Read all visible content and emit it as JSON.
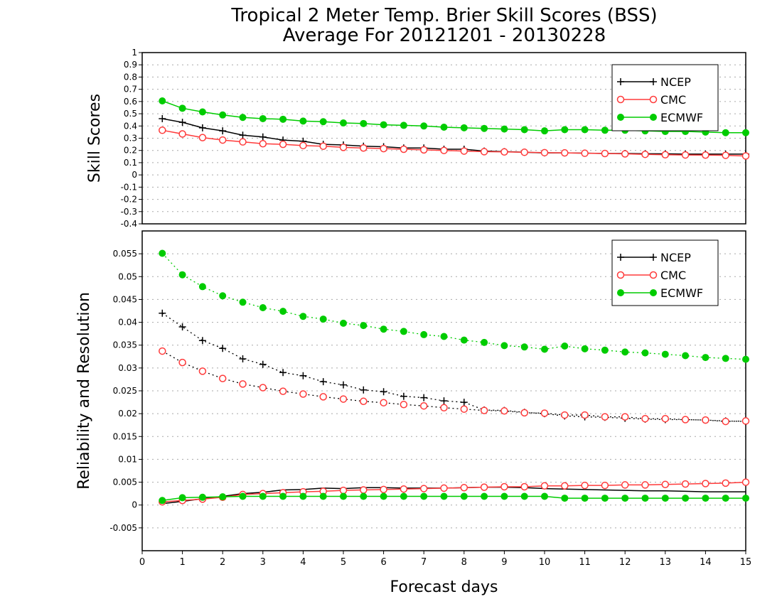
{
  "title_line1": "Tropical 2 Meter Temp. Brier Skill Scores (BSS)",
  "title_line2": "Average For 20121201 - 20130228",
  "chart_data": [
    {
      "type": "line",
      "ylabel": "Skill Scores",
      "xlabel": "",
      "xlim": [
        0,
        15
      ],
      "ylim": [
        -0.4,
        1.0
      ],
      "yticks": [
        "-0.4",
        "-0.3",
        "-0.2",
        "-0.1",
        "0",
        "0.1",
        "0.2",
        "0.3",
        "0.4",
        "0.5",
        "0.6",
        "0.7",
        "0.8",
        "0.9",
        "1"
      ],
      "grid": true,
      "legend_position": "top-right",
      "x": [
        0.5,
        1,
        1.5,
        2,
        2.5,
        3,
        3.5,
        4,
        4.5,
        5,
        5.5,
        6,
        6.5,
        7,
        7.5,
        8,
        8.5,
        9,
        9.5,
        10,
        10.5,
        11,
        11.5,
        12,
        12.5,
        13,
        13.5,
        14,
        14.5,
        15
      ],
      "series": [
        {
          "name": "NCEP",
          "color": "#000000",
          "marker": "plus",
          "line": "solid",
          "values": [
            0.46,
            0.43,
            0.385,
            0.36,
            0.325,
            0.31,
            0.285,
            0.275,
            0.25,
            0.245,
            0.235,
            0.23,
            0.22,
            0.22,
            0.21,
            0.21,
            0.195,
            0.19,
            0.185,
            0.18,
            0.18,
            0.178,
            0.175,
            0.175,
            0.173,
            0.172,
            0.17,
            0.17,
            0.17,
            0.17
          ]
        },
        {
          "name": "CMC",
          "color": "#ff3b3b",
          "marker": "open-circle",
          "line": "solid",
          "values": [
            0.365,
            0.335,
            0.305,
            0.285,
            0.27,
            0.255,
            0.25,
            0.24,
            0.235,
            0.225,
            0.22,
            0.215,
            0.21,
            0.205,
            0.2,
            0.195,
            0.19,
            0.188,
            0.185,
            0.182,
            0.18,
            0.177,
            0.175,
            0.172,
            0.168,
            0.165,
            0.163,
            0.162,
            0.16,
            0.155
          ]
        },
        {
          "name": "ECMWF",
          "color": "#00cc00",
          "marker": "filled-circle",
          "line": "solid",
          "values": [
            0.605,
            0.545,
            0.515,
            0.49,
            0.47,
            0.46,
            0.455,
            0.44,
            0.435,
            0.425,
            0.42,
            0.41,
            0.405,
            0.4,
            0.39,
            0.385,
            0.38,
            0.375,
            0.37,
            0.36,
            0.37,
            0.37,
            0.365,
            0.365,
            0.36,
            0.355,
            0.355,
            0.35,
            0.345,
            0.345
          ]
        }
      ]
    },
    {
      "type": "line",
      "ylabel": "Reliability and Resolution",
      "xlabel": "Forecast days",
      "xlim": [
        0,
        15
      ],
      "ylim": [
        -0.01,
        0.06
      ],
      "xticks": [
        "0",
        "1",
        "2",
        "3",
        "4",
        "5",
        "6",
        "7",
        "8",
        "9",
        "10",
        "11",
        "12",
        "13",
        "14",
        "15"
      ],
      "yticks": [
        "-0.005",
        "0",
        "0.005",
        "0.01",
        "0.015",
        "0.02",
        "0.025",
        "0.03",
        "0.035",
        "0.04",
        "0.045",
        "0.05",
        "0.055"
      ],
      "grid": true,
      "legend_position": "top-right",
      "x": [
        0.5,
        1,
        1.5,
        2,
        2.5,
        3,
        3.5,
        4,
        4.5,
        5,
        5.5,
        6,
        6.5,
        7,
        7.5,
        8,
        8.5,
        9,
        9.5,
        10,
        10.5,
        11,
        11.5,
        12,
        12.5,
        13,
        13.5,
        14,
        14.5,
        15
      ],
      "series": [
        {
          "name": "NCEP",
          "color": "#000000",
          "marker": "plus",
          "line": "dotted",
          "values": [
            0.042,
            0.039,
            0.036,
            0.0343,
            0.032,
            0.0308,
            0.029,
            0.0283,
            0.027,
            0.0263,
            0.0252,
            0.0248,
            0.0238,
            0.0235,
            0.0228,
            0.0225,
            0.0208,
            0.0207,
            0.0203,
            0.02,
            0.0195,
            0.0193,
            0.0192,
            0.019,
            0.0188,
            0.0187,
            0.0187,
            0.0186,
            0.0184,
            0.0183
          ]
        },
        {
          "name": "CMC",
          "color": "#ff3b3b",
          "marker": "open-circle",
          "line": "dotted",
          "values": [
            0.0337,
            0.0312,
            0.0293,
            0.0277,
            0.0265,
            0.0257,
            0.0249,
            0.0243,
            0.0237,
            0.0232,
            0.0227,
            0.0224,
            0.022,
            0.0217,
            0.0213,
            0.021,
            0.0207,
            0.0206,
            0.0202,
            0.0201,
            0.0197,
            0.0197,
            0.0193,
            0.0193,
            0.0189,
            0.0189,
            0.0187,
            0.0186,
            0.0183,
            0.0184
          ]
        },
        {
          "name": "ECMWF",
          "color": "#00cc00",
          "marker": "filled-circle",
          "line": "dotted",
          "values": [
            0.0551,
            0.0504,
            0.0478,
            0.0458,
            0.0444,
            0.0432,
            0.0424,
            0.0413,
            0.0407,
            0.0398,
            0.0393,
            0.0385,
            0.038,
            0.0373,
            0.0369,
            0.0361,
            0.0356,
            0.0349,
            0.0346,
            0.0341,
            0.0348,
            0.0342,
            0.0339,
            0.0335,
            0.0333,
            0.033,
            0.0327,
            0.0323,
            0.0321,
            0.0319
          ]
        },
        {
          "name": "",
          "color": "#000000",
          "marker": "none",
          "line": "solid",
          "values": [
            0.0003,
            0.0008,
            0.0014,
            0.0019,
            0.0025,
            0.0028,
            0.0033,
            0.0034,
            0.0037,
            0.0036,
            0.0038,
            0.0038,
            0.0037,
            0.0037,
            0.0037,
            0.0038,
            0.0039,
            0.0039,
            0.0038,
            0.0036,
            0.0035,
            0.0034,
            0.0033,
            0.0032,
            0.0031,
            0.0031,
            0.003,
            0.0029,
            0.0029,
            0.0029
          ]
        },
        {
          "name": "",
          "color": "#ff3b3b",
          "marker": "open-circle",
          "line": "solid",
          "values": [
            0.0007,
            0.001,
            0.0013,
            0.0017,
            0.0023,
            0.0025,
            0.0027,
            0.0029,
            0.003,
            0.0032,
            0.0033,
            0.0034,
            0.0035,
            0.0036,
            0.0037,
            0.0038,
            0.0039,
            0.004,
            0.004,
            0.0042,
            0.0042,
            0.0043,
            0.0043,
            0.0044,
            0.0044,
            0.0045,
            0.0046,
            0.0047,
            0.0048,
            0.005
          ]
        },
        {
          "name": "",
          "color": "#00cc00",
          "marker": "filled-circle",
          "line": "solid",
          "values": [
            0.001,
            0.0016,
            0.0017,
            0.0018,
            0.0019,
            0.0019,
            0.0019,
            0.0019,
            0.0019,
            0.0019,
            0.0019,
            0.0019,
            0.0019,
            0.0019,
            0.0019,
            0.0019,
            0.0019,
            0.0019,
            0.0019,
            0.0019,
            0.0015,
            0.0015,
            0.0015,
            0.0015,
            0.0015,
            0.0015,
            0.0015,
            0.0015,
            0.0015,
            0.0015
          ]
        }
      ]
    }
  ]
}
